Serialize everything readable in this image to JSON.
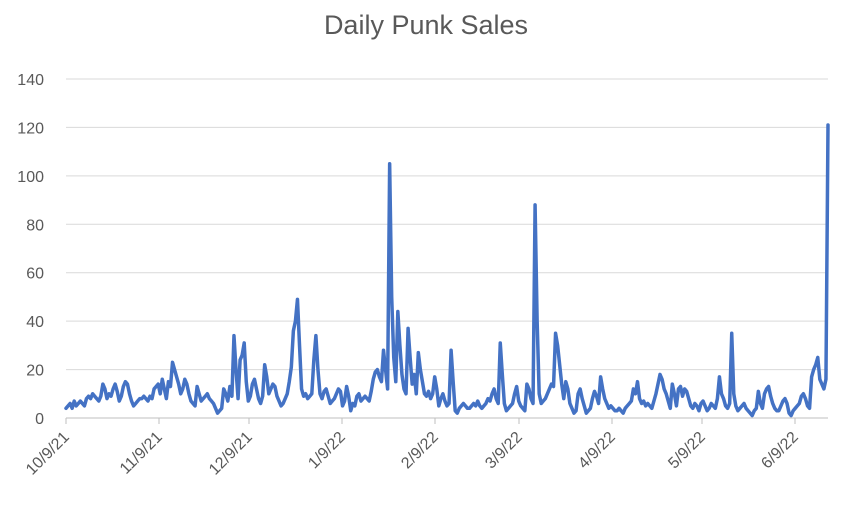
{
  "chart_data": {
    "type": "line",
    "title": "Daily Punk Sales",
    "xlabel": "",
    "ylabel": "",
    "ylim": [
      0,
      140
    ],
    "y_ticks": [
      0,
      20,
      40,
      60,
      80,
      100,
      120,
      140
    ],
    "x_start": "10/9/21",
    "x_end": "6/20/22",
    "x_ticks": [
      "10/9/21",
      "11/9/21",
      "12/9/21",
      "1/9/22",
      "2/9/22",
      "3/9/22",
      "4/9/22",
      "5/9/22",
      "6/9/22"
    ],
    "grid": "horizontal",
    "legend": "none",
    "line_color": "#4472c4",
    "series": [
      {
        "name": "",
        "values": [
          4,
          5,
          6,
          4,
          7,
          5,
          6,
          7,
          6,
          5,
          8,
          9,
          8,
          10,
          9,
          8,
          7,
          9,
          14,
          12,
          8,
          10,
          9,
          12,
          14,
          11,
          7,
          9,
          13,
          15,
          14,
          10,
          7,
          5,
          6,
          7,
          8,
          8,
          9,
          8,
          7,
          9,
          8,
          12,
          13,
          14,
          10,
          16,
          12,
          8,
          15,
          13,
          23,
          20,
          17,
          14,
          10,
          12,
          16,
          14,
          10,
          7,
          6,
          5,
          13,
          10,
          7,
          8,
          9,
          10,
          8,
          7,
          6,
          4,
          2,
          3,
          4,
          12,
          10,
          7,
          13,
          9,
          34,
          20,
          8,
          24,
          26,
          31,
          15,
          7,
          9,
          14,
          16,
          12,
          8,
          6,
          9,
          22,
          17,
          10,
          12,
          14,
          13,
          9,
          7,
          5,
          6,
          8,
          10,
          15,
          21,
          36,
          40,
          49,
          30,
          12,
          9,
          10,
          8,
          9,
          10,
          24,
          34,
          20,
          10,
          8,
          11,
          12,
          9,
          6,
          7,
          8,
          10,
          12,
          11,
          5,
          7,
          13,
          9,
          3,
          6,
          5,
          9,
          10,
          7,
          8,
          9,
          8,
          7,
          11,
          16,
          19,
          20,
          17,
          15,
          28,
          20,
          12,
          105,
          50,
          25,
          15,
          44,
          30,
          18,
          12,
          10,
          37,
          25,
          14,
          18,
          10,
          27,
          20,
          15,
          10,
          9,
          11,
          8,
          10,
          17,
          12,
          5,
          8,
          10,
          7,
          5,
          6,
          28,
          15,
          3,
          2,
          4,
          5,
          6,
          5,
          4,
          4,
          5,
          6,
          5,
          7,
          5,
          4,
          5,
          6,
          8,
          7,
          10,
          12,
          8,
          6,
          31,
          18,
          6,
          3,
          4,
          5,
          6,
          10,
          13,
          7,
          5,
          4,
          3,
          14,
          12,
          8,
          6,
          88,
          40,
          10,
          6,
          7,
          8,
          10,
          12,
          14,
          13,
          35,
          30,
          22,
          14,
          8,
          15,
          12,
          6,
          4,
          2,
          3,
          10,
          12,
          8,
          5,
          2,
          3,
          4,
          8,
          11,
          9,
          6,
          17,
          12,
          8,
          6,
          4,
          5,
          4,
          3,
          3,
          4,
          3,
          2,
          4,
          5,
          6,
          7,
          12,
          10,
          15,
          8,
          6,
          7,
          5,
          6,
          5,
          4,
          7,
          10,
          14,
          18,
          16,
          12,
          10,
          7,
          4,
          14,
          10,
          5,
          12,
          13,
          9,
          12,
          11,
          8,
          5,
          4,
          6,
          5,
          3,
          6,
          7,
          5,
          3,
          4,
          6,
          5,
          4,
          8,
          17,
          10,
          8,
          5,
          4,
          6,
          35,
          10,
          5,
          3,
          4,
          5,
          6,
          4,
          3,
          2,
          1,
          3,
          4,
          11,
          6,
          4,
          10,
          12,
          13,
          9,
          6,
          4,
          3,
          3,
          5,
          7,
          8,
          6,
          2,
          1,
          3,
          4,
          5,
          6,
          9,
          10,
          8,
          5,
          4,
          17,
          20,
          22,
          25,
          16,
          14,
          12,
          16,
          121
        ]
      }
    ]
  }
}
